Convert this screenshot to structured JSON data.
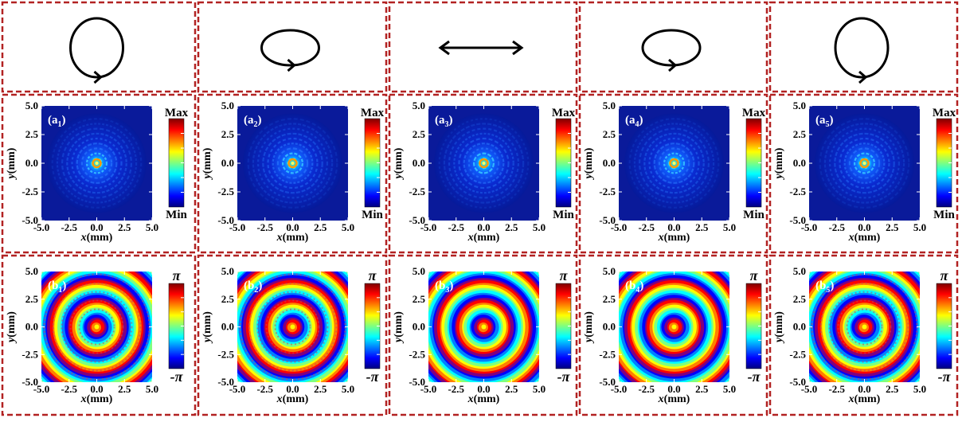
{
  "figure": {
    "panels": [
      {
        "polarization": "circular",
        "intensity_label": "(a",
        "intensity_sub": "1",
        "phase_label": "(b",
        "phase_sub": "1"
      },
      {
        "polarization": "elliptical",
        "intensity_label": "(a",
        "intensity_sub": "2",
        "phase_label": "(b",
        "phase_sub": "2"
      },
      {
        "polarization": "linear",
        "intensity_label": "(a",
        "intensity_sub": "3",
        "phase_label": "(b",
        "phase_sub": "3"
      },
      {
        "polarization": "elliptical",
        "intensity_label": "(a",
        "intensity_sub": "4",
        "phase_label": "(b",
        "phase_sub": "4"
      },
      {
        "polarization": "circular",
        "intensity_label": "(a",
        "intensity_sub": "5",
        "phase_label": "(b",
        "phase_sub": "5"
      }
    ],
    "axes": {
      "ticks": [
        "-5.0",
        "-2.5",
        "0.0",
        "2.5",
        "5.0"
      ],
      "y_ticks": [
        "5.0",
        "2.5",
        "0.0",
        "-2.5",
        "-5.0"
      ],
      "x_var": "x",
      "x_unit": "(mm)",
      "y_var": "y",
      "y_unit": "(mm)"
    },
    "colorbars": {
      "intensity_max": "Max",
      "intensity_min": "Min",
      "phase_max": "π",
      "phase_min": "-π"
    },
    "colors": {
      "frame": "#b22222",
      "map_background": "#0a1a9a",
      "colormap": [
        "#00007f",
        "#0000ff",
        "#007fff",
        "#00ffff",
        "#7fff7f",
        "#ffff00",
        "#ff7f00",
        "#ff0000",
        "#7f0000"
      ]
    }
  }
}
